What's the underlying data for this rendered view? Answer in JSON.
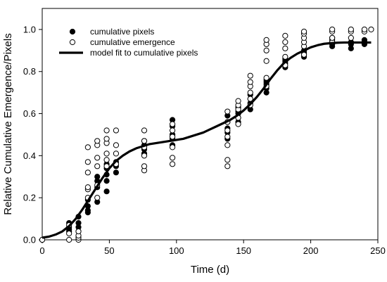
{
  "chart_data": {
    "type": "scatter",
    "title": "",
    "xlabel": "Time (d)",
    "ylabel": "Relative Cumulative Emergence/Pixels",
    "xlim": [
      0,
      250
    ],
    "ylim": [
      0,
      1.1
    ],
    "xticks": [
      0,
      50,
      100,
      150,
      200,
      250
    ],
    "yticks": [
      0.0,
      0.2,
      0.4,
      0.6,
      0.8,
      1.0
    ],
    "xtick_labels": [
      "0",
      "50",
      "100",
      "150",
      "200",
      "250"
    ],
    "ytick_labels": [
      "0.0",
      "0.2",
      "0.4",
      "0.6",
      "0.8",
      "1.0"
    ],
    "grid": false,
    "legend_position": "top-left",
    "series": [
      {
        "name": "cumulative pixels",
        "marker": "filled-circle",
        "color": "#000000",
        "points": [
          [
            0,
            0.0
          ],
          [
            20,
            0.08
          ],
          [
            20,
            0.06
          ],
          [
            20,
            0.05
          ],
          [
            20,
            0.04
          ],
          [
            27,
            0.11
          ],
          [
            27,
            0.08
          ],
          [
            27,
            0.06
          ],
          [
            27,
            0.04
          ],
          [
            34,
            0.19
          ],
          [
            34,
            0.16
          ],
          [
            34,
            0.14
          ],
          [
            34,
            0.13
          ],
          [
            41,
            0.25
          ],
          [
            41,
            0.18
          ],
          [
            41,
            0.3
          ],
          [
            41,
            0.28
          ],
          [
            48,
            0.23
          ],
          [
            48,
            0.28
          ],
          [
            48,
            0.31
          ],
          [
            48,
            0.34
          ],
          [
            48,
            0.36
          ],
          [
            55,
            0.32
          ],
          [
            55,
            0.35
          ],
          [
            55,
            0.37
          ],
          [
            76,
            0.41
          ],
          [
            76,
            0.43
          ],
          [
            76,
            0.45
          ],
          [
            76,
            0.47
          ],
          [
            97,
            0.45
          ],
          [
            97,
            0.48
          ],
          [
            97,
            0.5
          ],
          [
            97,
            0.54
          ],
          [
            97,
            0.57
          ],
          [
            138,
            0.48
          ],
          [
            138,
            0.51
          ],
          [
            138,
            0.53
          ],
          [
            138,
            0.56
          ],
          [
            138,
            0.59
          ],
          [
            146,
            0.56
          ],
          [
            146,
            0.58
          ],
          [
            146,
            0.6
          ],
          [
            146,
            0.61
          ],
          [
            146,
            0.63
          ],
          [
            155,
            0.62
          ],
          [
            155,
            0.65
          ],
          [
            155,
            0.67
          ],
          [
            155,
            0.69
          ],
          [
            167,
            0.7
          ],
          [
            167,
            0.72
          ],
          [
            167,
            0.74
          ],
          [
            167,
            0.75
          ],
          [
            167,
            0.76
          ],
          [
            181,
            0.82
          ],
          [
            181,
            0.84
          ],
          [
            181,
            0.85
          ],
          [
            181,
            0.86
          ],
          [
            195,
            0.87
          ],
          [
            195,
            0.88
          ],
          [
            195,
            0.89
          ],
          [
            195,
            0.9
          ],
          [
            216,
            0.92
          ],
          [
            216,
            0.93
          ],
          [
            216,
            0.94
          ],
          [
            216,
            0.95
          ],
          [
            216,
            0.96
          ],
          [
            230,
            0.91
          ],
          [
            230,
            0.93
          ],
          [
            230,
            0.94
          ],
          [
            240,
            0.93
          ],
          [
            240,
            0.94
          ],
          [
            240,
            0.95
          ]
        ]
      },
      {
        "name": "cumulative emergence",
        "marker": "open-circle",
        "color": "#000000",
        "points": [
          [
            0,
            0.0
          ],
          [
            20,
            0.0
          ],
          [
            20,
            0.03
          ],
          [
            20,
            0.07
          ],
          [
            27,
            0.0
          ],
          [
            27,
            0.01
          ],
          [
            27,
            0.02
          ],
          [
            27,
            0.04
          ],
          [
            34,
            0.2
          ],
          [
            34,
            0.24
          ],
          [
            34,
            0.25
          ],
          [
            34,
            0.32
          ],
          [
            34,
            0.37
          ],
          [
            34,
            0.44
          ],
          [
            41,
            0.2
          ],
          [
            41,
            0.26
          ],
          [
            41,
            0.35
          ],
          [
            41,
            0.39
          ],
          [
            41,
            0.45
          ],
          [
            41,
            0.47
          ],
          [
            48,
            0.35
          ],
          [
            48,
            0.38
          ],
          [
            48,
            0.41
          ],
          [
            48,
            0.46
          ],
          [
            48,
            0.48
          ],
          [
            48,
            0.52
          ],
          [
            55,
            0.36
          ],
          [
            55,
            0.41
          ],
          [
            55,
            0.45
          ],
          [
            55,
            0.52
          ],
          [
            76,
            0.33
          ],
          [
            76,
            0.35
          ],
          [
            76,
            0.4
          ],
          [
            76,
            0.44
          ],
          [
            76,
            0.47
          ],
          [
            76,
            0.52
          ],
          [
            97,
            0.36
          ],
          [
            97,
            0.39
          ],
          [
            97,
            0.44
          ],
          [
            97,
            0.49
          ],
          [
            97,
            0.52
          ],
          [
            97,
            0.55
          ],
          [
            138,
            0.35
          ],
          [
            138,
            0.38
          ],
          [
            138,
            0.45
          ],
          [
            138,
            0.49
          ],
          [
            138,
            0.52
          ],
          [
            138,
            0.56
          ],
          [
            138,
            0.61
          ],
          [
            146,
            0.55
          ],
          [
            146,
            0.58
          ],
          [
            146,
            0.62
          ],
          [
            146,
            0.64
          ],
          [
            146,
            0.66
          ],
          [
            155,
            0.64
          ],
          [
            155,
            0.67
          ],
          [
            155,
            0.7
          ],
          [
            155,
            0.73
          ],
          [
            155,
            0.75
          ],
          [
            155,
            0.78
          ],
          [
            167,
            0.73
          ],
          [
            167,
            0.77
          ],
          [
            167,
            0.85
          ],
          [
            167,
            0.9
          ],
          [
            167,
            0.93
          ],
          [
            167,
            0.95
          ],
          [
            181,
            0.83
          ],
          [
            181,
            0.87
          ],
          [
            181,
            0.91
          ],
          [
            181,
            0.94
          ],
          [
            181,
            0.97
          ],
          [
            195,
            0.88
          ],
          [
            195,
            0.92
          ],
          [
            195,
            0.94
          ],
          [
            195,
            0.96
          ],
          [
            195,
            0.98
          ],
          [
            195,
            0.99
          ],
          [
            216,
            0.94
          ],
          [
            216,
            0.96
          ],
          [
            216,
            0.99
          ],
          [
            216,
            1.0
          ],
          [
            230,
            0.96
          ],
          [
            230,
            0.99
          ],
          [
            230,
            1.0
          ],
          [
            240,
            0.99
          ],
          [
            240,
            1.0
          ],
          [
            245,
            1.0
          ]
        ]
      },
      {
        "name": "model fit to cumulative pixels",
        "marker": "line",
        "color": "#000000",
        "points": [
          [
            0,
            0.01
          ],
          [
            5,
            0.015
          ],
          [
            10,
            0.025
          ],
          [
            15,
            0.04
          ],
          [
            20,
            0.065
          ],
          [
            25,
            0.1
          ],
          [
            30,
            0.145
          ],
          [
            35,
            0.195
          ],
          [
            40,
            0.245
          ],
          [
            45,
            0.295
          ],
          [
            50,
            0.34
          ],
          [
            55,
            0.375
          ],
          [
            60,
            0.4
          ],
          [
            65,
            0.42
          ],
          [
            70,
            0.435
          ],
          [
            75,
            0.445
          ],
          [
            80,
            0.455
          ],
          [
            85,
            0.46
          ],
          [
            90,
            0.465
          ],
          [
            95,
            0.47
          ],
          [
            100,
            0.475
          ],
          [
            105,
            0.48
          ],
          [
            110,
            0.49
          ],
          [
            115,
            0.5
          ],
          [
            120,
            0.51
          ],
          [
            125,
            0.525
          ],
          [
            130,
            0.54
          ],
          [
            135,
            0.555
          ],
          [
            140,
            0.57
          ],
          [
            145,
            0.59
          ],
          [
            150,
            0.615
          ],
          [
            155,
            0.645
          ],
          [
            160,
            0.68
          ],
          [
            165,
            0.72
          ],
          [
            170,
            0.765
          ],
          [
            175,
            0.805
          ],
          [
            180,
            0.84
          ],
          [
            185,
            0.865
          ],
          [
            190,
            0.885
          ],
          [
            195,
            0.9
          ],
          [
            200,
            0.915
          ],
          [
            205,
            0.925
          ],
          [
            210,
            0.932
          ],
          [
            215,
            0.935
          ],
          [
            220,
            0.937
          ],
          [
            225,
            0.938
          ],
          [
            230,
            0.938
          ],
          [
            235,
            0.938
          ],
          [
            240,
            0.938
          ],
          [
            245,
            0.938
          ]
        ]
      }
    ]
  }
}
